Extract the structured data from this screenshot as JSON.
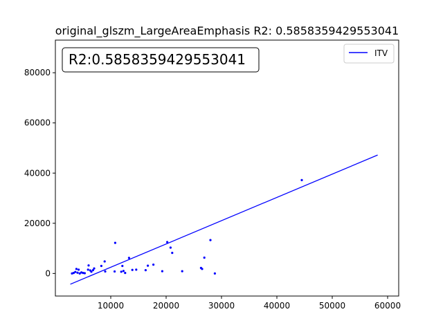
{
  "chart_data": {
    "type": "scatter",
    "title": "original_glszm_LargeAreaEmphasis R2: 0.5858359429553041",
    "xlabel": "",
    "ylabel": "",
    "xlim": [
      0,
      62000
    ],
    "ylim": [
      -9000,
      93000
    ],
    "x_ticks": [
      {
        "value": 10000,
        "label": "10000"
      },
      {
        "value": 20000,
        "label": "20000"
      },
      {
        "value": 30000,
        "label": "30000"
      },
      {
        "value": 40000,
        "label": "40000"
      },
      {
        "value": 50000,
        "label": "50000"
      },
      {
        "value": 60000,
        "label": "60000"
      }
    ],
    "y_ticks": [
      {
        "value": 0,
        "label": "0"
      },
      {
        "value": 20000,
        "label": "20000"
      },
      {
        "value": 40000,
        "label": "40000"
      },
      {
        "value": 60000,
        "label": "60000"
      },
      {
        "value": 80000,
        "label": "80000"
      }
    ],
    "annotation": "R2:0.5858359429553041",
    "legend": {
      "placement": "top-right",
      "entries": [
        "ITV"
      ]
    },
    "grid": false,
    "color": "#0000ff",
    "series": [
      {
        "name": "ITV",
        "kind": "points",
        "points": [
          [
            3000,
            0
          ],
          [
            3300,
            200
          ],
          [
            3600,
            600
          ],
          [
            3800,
            1800
          ],
          [
            4000,
            300
          ],
          [
            4200,
            1500
          ],
          [
            4400,
            0
          ],
          [
            4700,
            400
          ],
          [
            5000,
            200
          ],
          [
            5300,
            100
          ],
          [
            5900,
            1500
          ],
          [
            6000,
            3200
          ],
          [
            6300,
            1200
          ],
          [
            6500,
            700
          ],
          [
            6800,
            1300
          ],
          [
            7000,
            2000
          ],
          [
            8300,
            3000
          ],
          [
            8900,
            4800
          ],
          [
            9000,
            800
          ],
          [
            10700,
            800
          ],
          [
            10800,
            12200
          ],
          [
            11900,
            700
          ],
          [
            12100,
            3000
          ],
          [
            12300,
            1000
          ],
          [
            12600,
            200
          ],
          [
            13300,
            6200
          ],
          [
            13900,
            1400
          ],
          [
            14600,
            1500
          ],
          [
            16300,
            1300
          ],
          [
            16700,
            3100
          ],
          [
            17700,
            3500
          ],
          [
            19300,
            900
          ],
          [
            20200,
            12500
          ],
          [
            20800,
            10300
          ],
          [
            21100,
            8200
          ],
          [
            22900,
            900
          ],
          [
            26300,
            2200
          ],
          [
            26500,
            1800
          ],
          [
            26900,
            6300
          ],
          [
            28000,
            13300
          ],
          [
            28800,
            0
          ],
          [
            44500,
            37200
          ]
        ]
      },
      {
        "name": "",
        "kind": "line",
        "points": [
          [
            2700,
            -4300
          ],
          [
            58200,
            47200
          ]
        ]
      }
    ]
  }
}
